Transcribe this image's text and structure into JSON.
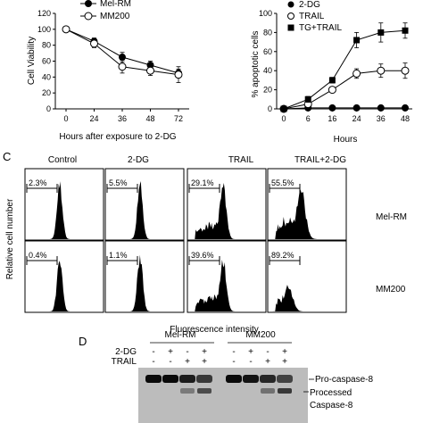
{
  "chart_data": [
    {
      "type": "line",
      "ylabel": "Cell Viability",
      "xlabel": "Hours after exposure to 2-DG",
      "categories": [
        "0",
        "24",
        "36",
        "48",
        "72"
      ],
      "ylim": [
        0,
        120
      ],
      "yticks": [
        "0",
        "20",
        "40",
        "60",
        "80",
        "100",
        "120"
      ],
      "legend_position": "top",
      "series": [
        {
          "name": "Mel-RM",
          "marker": "filled-circle",
          "values": [
            100,
            85,
            65,
            55,
            45
          ],
          "errors": [
            2,
            4,
            6,
            5,
            5
          ]
        },
        {
          "name": "MM200",
          "marker": "open-circle",
          "values": [
            100,
            82,
            53,
            48,
            43
          ],
          "errors": [
            2,
            5,
            8,
            6,
            10
          ]
        }
      ]
    },
    {
      "type": "line",
      "ylabel": "% apoptotic cells",
      "xlabel": "Hours",
      "categories": [
        "0",
        "6",
        "16",
        "24",
        "36",
        "48"
      ],
      "ylim": [
        0,
        100
      ],
      "yticks": [
        "0",
        "20",
        "40",
        "60",
        "80",
        "100"
      ],
      "legend_position": "top-left",
      "series": [
        {
          "name": "2-DG",
          "marker": "filled-circle",
          "values": [
            0,
            1,
            1,
            1,
            1,
            1
          ],
          "errors": [
            0,
            0,
            0,
            0,
            0,
            0
          ]
        },
        {
          "name": "TRAIL",
          "marker": "open-circle",
          "values": [
            0,
            5,
            20,
            37,
            40,
            40
          ],
          "errors": [
            0,
            2,
            3,
            5,
            7,
            8
          ]
        },
        {
          "name": "TG+TRAIL",
          "marker": "filled-square",
          "values": [
            0,
            10,
            30,
            72,
            80,
            82
          ],
          "errors": [
            0,
            3,
            3,
            8,
            10,
            8
          ]
        }
      ]
    }
  ],
  "panel_c": {
    "label": "C",
    "columns": [
      "Control",
      "2-DG",
      "TRAIL",
      "TRAIL+2-DG"
    ],
    "rows": [
      {
        "name": "Mel-RM",
        "values": [
          "2.3%",
          "5.5%",
          "29.1%",
          "55.5%"
        ]
      },
      {
        "name": "MM200",
        "values": [
          "0.4%",
          "1.1%",
          "39.6%",
          "89.2%"
        ]
      }
    ],
    "ylabel": "Relative cell number",
    "xlabel": "Fluorescence intensity"
  },
  "panel_d": {
    "label": "D",
    "groups": [
      "Mel-RM",
      "MM200"
    ],
    "row_labels": [
      "2-DG",
      "TRAIL"
    ],
    "signs_2dg": [
      "-",
      "+",
      "-",
      "+",
      "-",
      "+",
      "-",
      "+"
    ],
    "signs_trail": [
      "-",
      "-",
      "+",
      "+",
      "-",
      "-",
      "+",
      "+"
    ],
    "band_labels": [
      "Pro-caspase-8",
      "Processed",
      "Caspase-8"
    ]
  }
}
